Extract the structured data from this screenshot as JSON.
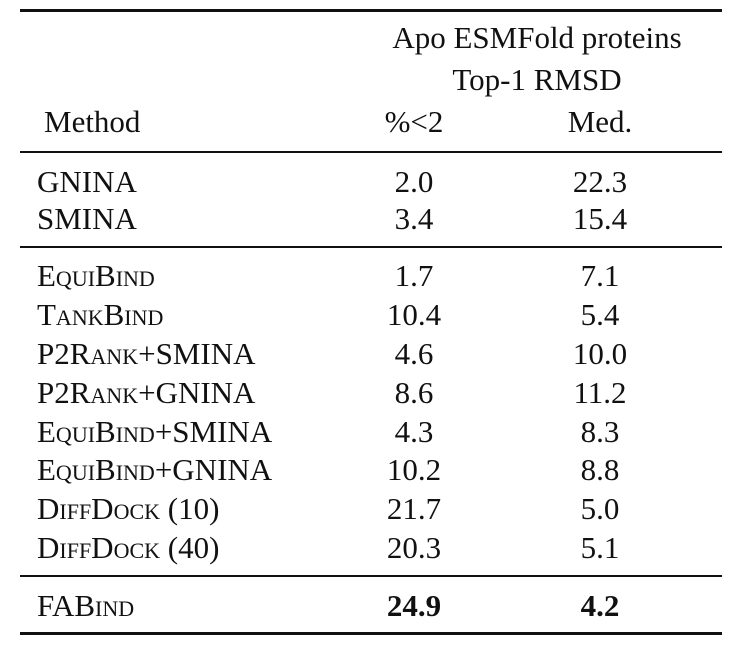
{
  "table": {
    "header": {
      "group_title": "Apo ESMFold proteins",
      "group_subtitle": "Top-1 RMSD",
      "method_label": "Method",
      "col1_label": "%<2",
      "col2_label": "Med."
    },
    "rows": [
      {
        "method": "GNINA",
        "pct": "2.0",
        "med": "22.3"
      },
      {
        "method": "SMINA",
        "pct": "3.4",
        "med": "15.4"
      },
      {
        "method": "EquiBind",
        "pct": "1.7",
        "med": "7.1"
      },
      {
        "method": "TankBind",
        "pct": "10.4",
        "med": "5.4"
      },
      {
        "method": "P2Rank+SMINA",
        "pct": "4.6",
        "med": "10.0"
      },
      {
        "method": "P2Rank+GNINA",
        "pct": "8.6",
        "med": "11.2"
      },
      {
        "method": "EquiBind+SMINA",
        "pct": "4.3",
        "med": "8.3"
      },
      {
        "method": "EquiBind+GNINA",
        "pct": "10.2",
        "med": "8.8"
      },
      {
        "method": "DiffDock (10)",
        "pct": "21.7",
        "med": "5.0"
      },
      {
        "method": "DiffDock (40)",
        "pct": "20.3",
        "med": "5.1"
      },
      {
        "method": "FABind",
        "pct": "24.9",
        "med": "4.2"
      }
    ]
  }
}
